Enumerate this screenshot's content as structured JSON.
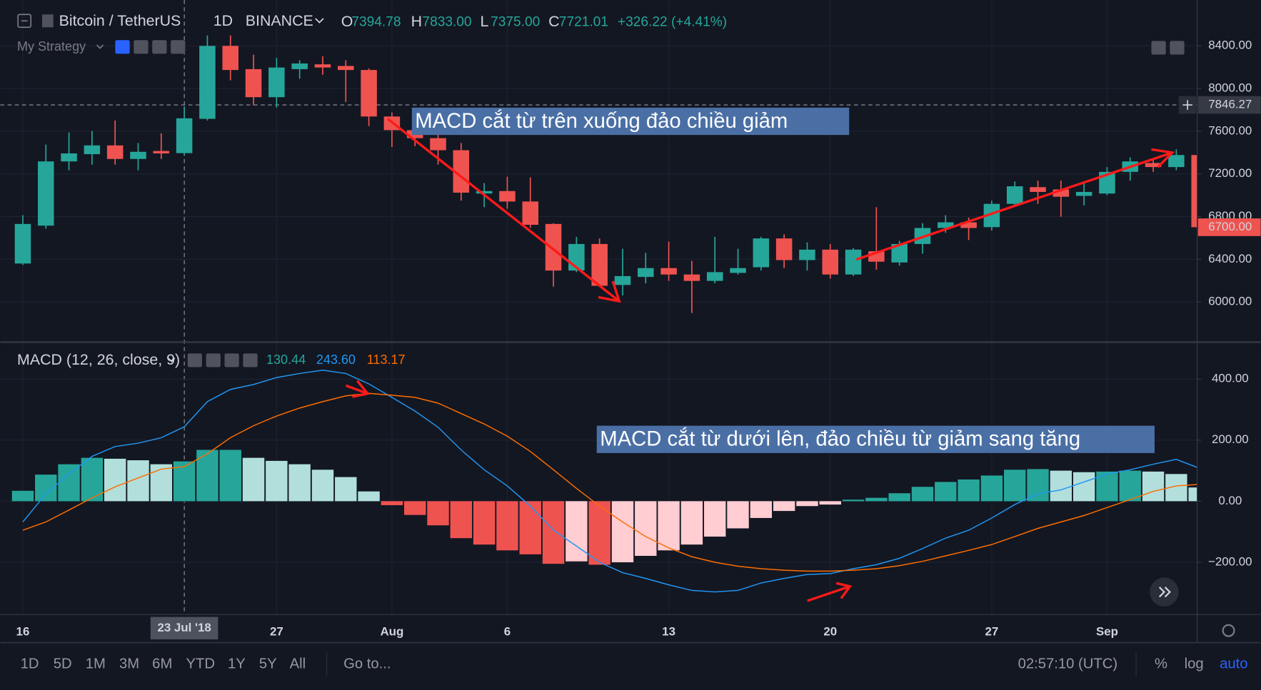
{
  "header": {
    "symbol": "Bitcoin / TetherUS",
    "interval": "1D",
    "exchange": "BINANCE",
    "o_label": "O",
    "o": "7394.78",
    "h_label": "H",
    "h": "7833.00",
    "l_label": "L",
    "l": "7375.00",
    "c_label": "C",
    "c": "7721.01",
    "change": "+326.22 (+4.41%)"
  },
  "strategy": "My Strategy",
  "macd_legend": {
    "title": "MACD (12, 26, close, 9)",
    "histogram": "130.44",
    "macd": "243.60",
    "signal": "113.17"
  },
  "toolbar": {
    "ranges": [
      "1D",
      "5D",
      "1M",
      "3M",
      "6M",
      "YTD",
      "1Y",
      "5Y",
      "All"
    ],
    "goto": "Go to...",
    "clock": "02:57:10 (UTC)",
    "percent": "%",
    "log": "log",
    "auto": "auto"
  },
  "chart_data": [
    {
      "type": "candlestick",
      "x": [
        "2018-07-16",
        "2018-07-17",
        "2018-07-18",
        "2018-07-19",
        "2018-07-20",
        "2018-07-21",
        "2018-07-22",
        "2018-07-23",
        "2018-07-24",
        "2018-07-25",
        "2018-07-26",
        "2018-07-27",
        "2018-07-28",
        "2018-07-29",
        "2018-07-30",
        "2018-07-31",
        "2018-08-01",
        "2018-08-02",
        "2018-08-03",
        "2018-08-04",
        "2018-08-05",
        "2018-08-06",
        "2018-08-07",
        "2018-08-08",
        "2018-08-09",
        "2018-08-10",
        "2018-08-11",
        "2018-08-12",
        "2018-08-13",
        "2018-08-14",
        "2018-08-15",
        "2018-08-16",
        "2018-08-17",
        "2018-08-18",
        "2018-08-19",
        "2018-08-20",
        "2018-08-21",
        "2018-08-22",
        "2018-08-23",
        "2018-08-24",
        "2018-08-25",
        "2018-08-26",
        "2018-08-27",
        "2018-08-28",
        "2018-08-29",
        "2018-08-30",
        "2018-08-31",
        "2018-09-01",
        "2018-09-02",
        "2018-09-03",
        "2018-09-04",
        "2018-09-05"
      ],
      "open": [
        6360,
        6715,
        7317,
        7385,
        7467,
        7340,
        7415,
        7394.78,
        7716,
        8400,
        8182,
        7919,
        8182,
        8227,
        8212,
        8174,
        7738,
        7610,
        7535,
        7422,
        7016,
        7039,
        6941,
        6731,
        6294,
        6543,
        6159,
        6234,
        6317,
        6257,
        6197,
        6272,
        6325,
        6595,
        6392,
        6490,
        6257,
        6475,
        6370,
        6543,
        6693,
        6746,
        6701,
        6919,
        7076,
        7054,
        6994,
        7016,
        7219,
        7302,
        7264,
        7377
      ],
      "high": [
        6813,
        7475,
        7588,
        7603,
        7700,
        7490,
        7580,
        7833,
        8498,
        8498,
        8317,
        8287,
        8265,
        8302,
        8265,
        8189,
        7776,
        7640,
        7588,
        7490,
        7114,
        7174,
        7167,
        6738,
        6610,
        6595,
        6498,
        6460,
        6565,
        6385,
        6610,
        6498,
        6610,
        6633,
        6558,
        6543,
        6505,
        6888,
        6573,
        6738,
        6813,
        6791,
        6949,
        7129,
        7137,
        7137,
        7121,
        7264,
        7355,
        7340,
        7430,
        7400
      ],
      "low": [
        6347,
        6686,
        7234,
        7287,
        7287,
        7234,
        7340,
        7375,
        7700,
        8077,
        7844,
        7821,
        8092,
        8129,
        7874,
        7648,
        7452,
        7460,
        7287,
        6949,
        6888,
        6873,
        6693,
        6144,
        6279,
        6144,
        6061,
        6174,
        6197,
        5896,
        6174,
        6257,
        6294,
        6317,
        6294,
        6219,
        6242,
        6302,
        6340,
        6452,
        6648,
        6580,
        6670,
        6904,
        6919,
        6798,
        6904,
        7001,
        7137,
        7219,
        7234,
        6680
      ],
      "close": [
        6731,
        7317,
        7392,
        7467,
        7340,
        7407,
        7392,
        7721.01,
        8400,
        8174,
        7919,
        8197,
        8235,
        8197,
        8174,
        7738,
        7610,
        7535,
        7422,
        7024,
        7039,
        6941,
        6723,
        6294,
        6543,
        6151,
        6242,
        6317,
        6257,
        6197,
        6279,
        6317,
        6595,
        6392,
        6490,
        6257,
        6490,
        6377,
        6543,
        6693,
        6746,
        6693,
        6919,
        7084,
        7031,
        6986,
        7031,
        7219,
        7317,
        7264,
        7377,
        6700
      ],
      "up_color": "#26a69a",
      "down_color": "#ef5350",
      "ylim": [
        5630,
        8830
      ],
      "yticks": [
        {
          "value": 6000,
          "label": "6000.00"
        },
        {
          "value": 6400,
          "label": "6400.00"
        },
        {
          "value": 6800,
          "label": "6800.00"
        },
        {
          "value": 7200,
          "label": "7200.00"
        },
        {
          "value": 7600,
          "label": "7600.00"
        },
        {
          "value": 8000,
          "label": "8000.00"
        },
        {
          "value": 8400,
          "label": "8400.00"
        }
      ],
      "xticks": [
        {
          "value": "2018-07-16",
          "label": "16"
        },
        {
          "value": "2018-07-27",
          "label": "27"
        },
        {
          "value": "2018-08-01",
          "label": "Aug"
        },
        {
          "value": "2018-08-06",
          "label": "6"
        },
        {
          "value": "2018-08-13",
          "label": "13"
        },
        {
          "value": "2018-08-20",
          "label": "20"
        },
        {
          "value": "2018-08-27",
          "label": "27"
        },
        {
          "value": "2018-09-01",
          "label": "Sep"
        }
      ],
      "grid": true,
      "last_price": {
        "value": 6700,
        "label": "6700.00"
      },
      "crosshair": {
        "x": {
          "value": "2018-07-23",
          "label": "23 Jul '18"
        },
        "y": 7846.27
      },
      "annotations": [
        {
          "text": "MACD cắt từ trên xuống đảo chiều giảm"
        }
      ]
    },
    {
      "type": "macd",
      "histogram": [
        34,
        87,
        121,
        142,
        139,
        134,
        121,
        130.44,
        168,
        168,
        142,
        132,
        121,
        103,
        79,
        32,
        -13,
        -45,
        -79,
        -121,
        -142,
        -161,
        -174,
        -205,
        -197,
        -208,
        -200,
        -179,
        -161,
        -142,
        -116,
        -89,
        -55,
        -32,
        -16,
        -11,
        5,
        11,
        26,
        47,
        63,
        71,
        84,
        103,
        105,
        100,
        95,
        97,
        100,
        97,
        89,
        45
      ],
      "histogram_colors": {
        "pos_rise": "#26a69a",
        "pos_fall": "#b2dfdb",
        "neg_fall": "#ef5350",
        "neg_rise": "#ffcdd2"
      },
      "series": [
        {
          "color": "#2196f3",
          "values": [
            -68,
            24,
            89,
            147,
            179,
            190,
            208,
            243.6,
            326,
            366,
            382,
            405,
            418,
            429,
            418,
            384,
            340,
            295,
            242,
            168,
            103,
            50,
            -16,
            -95,
            -147,
            -200,
            -234,
            -253,
            -274,
            -292,
            -297,
            -292,
            -268,
            -253,
            -240,
            -237,
            -221,
            -208,
            -187,
            -155,
            -121,
            -95,
            -55,
            -11,
            24,
            37,
            63,
            89,
            103,
            121,
            137,
            108
          ]
        },
        {
          "color": "#ff6d00",
          "values": [
            -95,
            -68,
            -29,
            11,
            47,
            76,
            105,
            113.17,
            155,
            208,
            247,
            279,
            305,
            326,
            345,
            353,
            347,
            340,
            321,
            287,
            253,
            213,
            163,
            103,
            42,
            -16,
            -68,
            -116,
            -153,
            -182,
            -200,
            -213,
            -221,
            -226,
            -229,
            -229,
            -226,
            -221,
            -211,
            -197,
            -179,
            -161,
            -142,
            -116,
            -89,
            -68,
            -47,
            -21,
            5,
            32,
            50,
            55
          ]
        }
      ],
      "ylim": [
        -371,
        518
      ],
      "yticks": [
        {
          "value": -200,
          "label": "−200.00"
        },
        {
          "value": 0,
          "label": "0.00"
        },
        {
          "value": 200,
          "label": "200.00"
        },
        {
          "value": 400,
          "label": "400.00"
        }
      ],
      "grid": true,
      "annotations": [
        {
          "text": "MACD cắt từ dưới lên, đảo chiều từ giảm sang tăng"
        }
      ]
    }
  ]
}
